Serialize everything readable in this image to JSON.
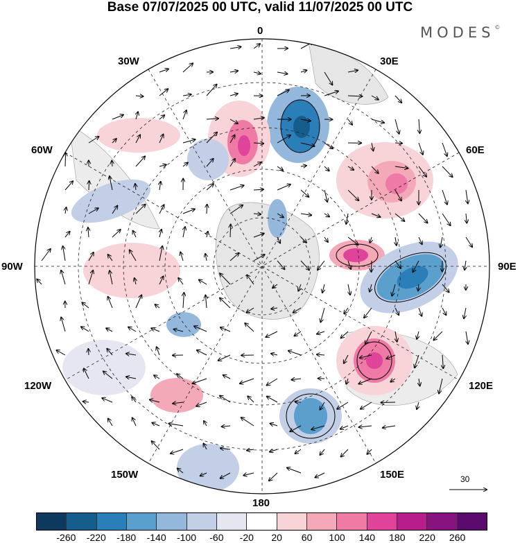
{
  "title": "Base 07/07/2025 00 UTC, valid 11/07/2025 00 UTC",
  "brand": {
    "name": "MODES",
    "mark": "©"
  },
  "labels": {
    "top": "0",
    "bottom": "180",
    "left": "90W",
    "right": "90E",
    "nw30": "30W",
    "ne30": "30E",
    "nw60": "60W",
    "ne60": "60E",
    "sw120": "120W",
    "se120": "120E",
    "sw150": "150W",
    "se150": "150E"
  },
  "reference_vector": "30",
  "colorbar": {
    "colors": [
      "#0d3a5c",
      "#155e8c",
      "#2b7fb8",
      "#5b9fcd",
      "#93b8dc",
      "#c3cfe6",
      "#e6e6f3",
      "#ffffff",
      "#f8d3d8",
      "#f4a9b9",
      "#ef7aa6",
      "#e0439a",
      "#b81e8b",
      "#86137e",
      "#5b0a6e"
    ],
    "ticks": [
      "-260",
      "-220",
      "-180",
      "-140",
      "-100",
      "-60",
      "-20",
      "20",
      "60",
      "100",
      "140",
      "180",
      "220",
      "260"
    ]
  },
  "anomaly_features": [
    {
      "sign": "negative",
      "near": "0-30E",
      "strength": "strong"
    },
    {
      "sign": "positive",
      "near": "10W",
      "strength": "strong"
    },
    {
      "sign": "positive",
      "near": "45E-60E",
      "strength": "moderate"
    },
    {
      "sign": "negative",
      "near": "90E",
      "strength": "strong"
    },
    {
      "sign": "positive",
      "near": "75E",
      "strength": "strong"
    },
    {
      "sign": "positive",
      "near": "120E",
      "strength": "strong"
    },
    {
      "sign": "negative",
      "near": "150E",
      "strength": "strong"
    },
    {
      "sign": "negative",
      "near": "30W-60W",
      "strength": "weak"
    }
  ]
}
